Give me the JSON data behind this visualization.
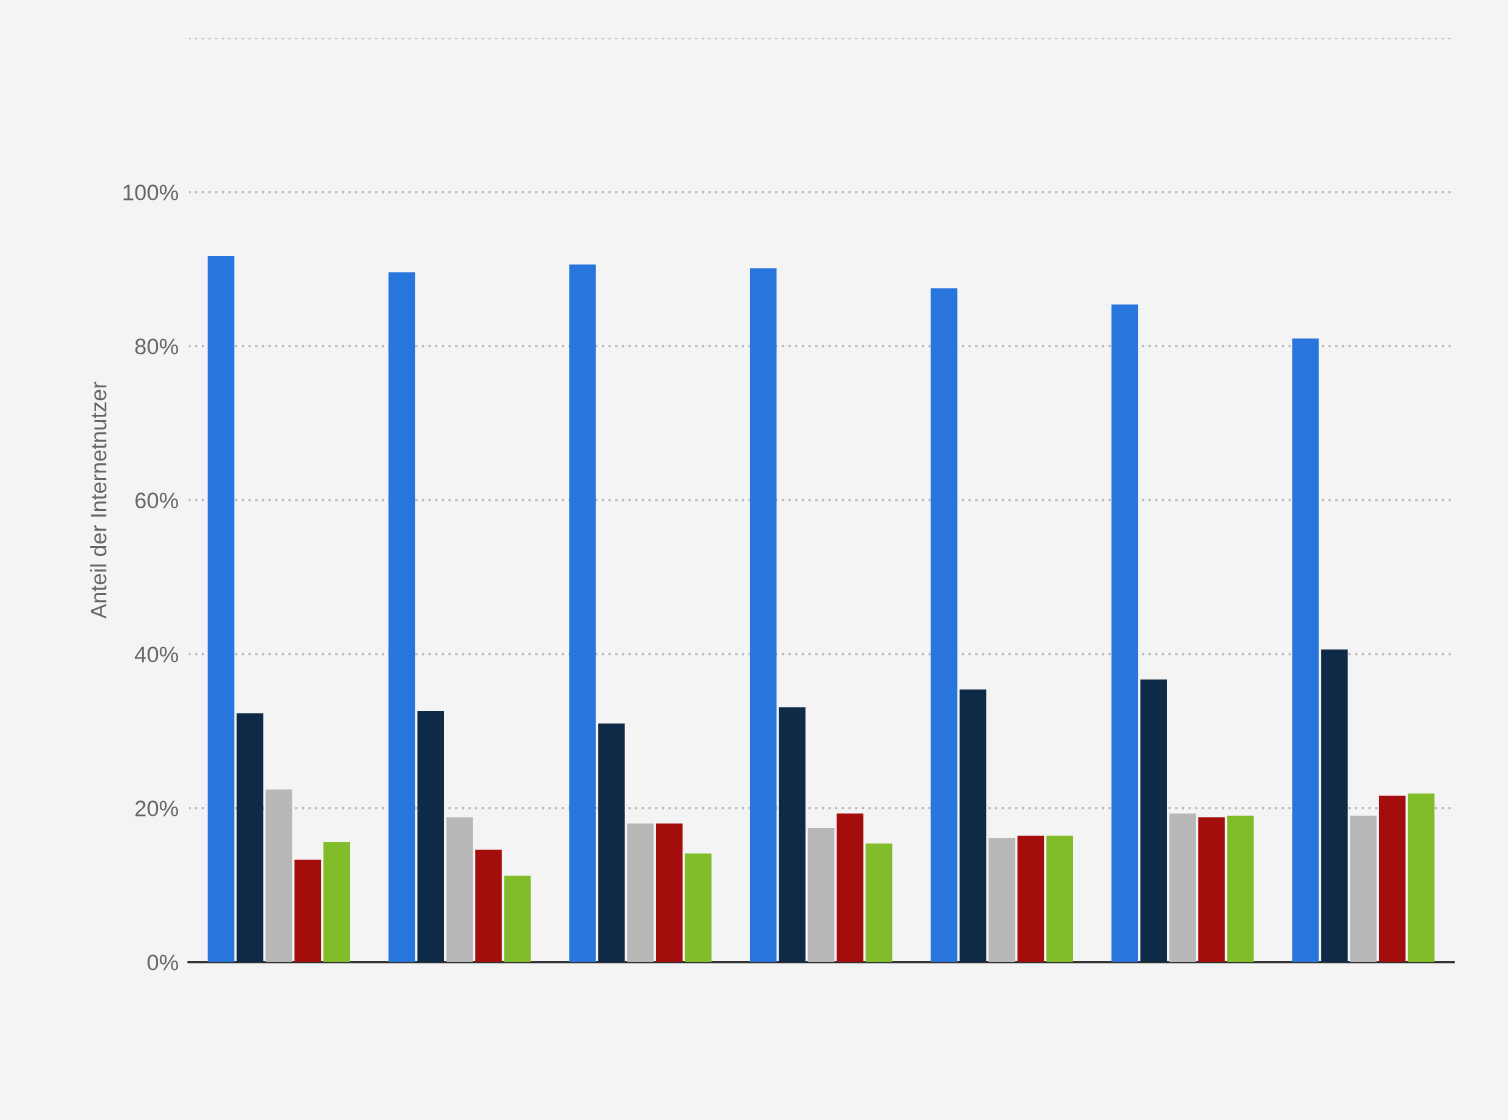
{
  "chart_data": {
    "type": "bar",
    "ylabel": "Anteil der Internetnutzer",
    "categories": [
      null,
      null,
      null,
      null,
      null,
      null,
      null
    ],
    "series": [
      {
        "color": "#2876dd",
        "values": [
          91.7,
          89.6,
          90.6,
          90.1,
          87.5,
          85.4,
          81.0
        ]
      },
      {
        "color": "#0f2a47",
        "values": [
          32.3,
          32.6,
          31.0,
          33.1,
          35.4,
          36.7,
          40.6
        ]
      },
      {
        "color": "#b8b8b8",
        "values": [
          22.4,
          18.8,
          18.0,
          17.4,
          16.1,
          19.3,
          19.0
        ]
      },
      {
        "color": "#a30e0c",
        "values": [
          13.3,
          14.6,
          18.0,
          19.3,
          16.4,
          18.8,
          21.6
        ]
      },
      {
        "color": "#81bc2a",
        "values": [
          15.6,
          11.2,
          14.1,
          15.4,
          16.4,
          19.0,
          21.9
        ]
      }
    ],
    "ylim": [
      0,
      120
    ],
    "yticks": [
      {
        "value": 0,
        "label": "0%"
      },
      {
        "value": 20,
        "label": "20%"
      },
      {
        "value": 40,
        "label": "40%"
      },
      {
        "value": 60,
        "label": "60%"
      },
      {
        "value": 80,
        "label": "80%"
      },
      {
        "value": 100,
        "label": "100%"
      },
      {
        "value": 120,
        "label": null
      }
    ],
    "grid": "y"
  }
}
